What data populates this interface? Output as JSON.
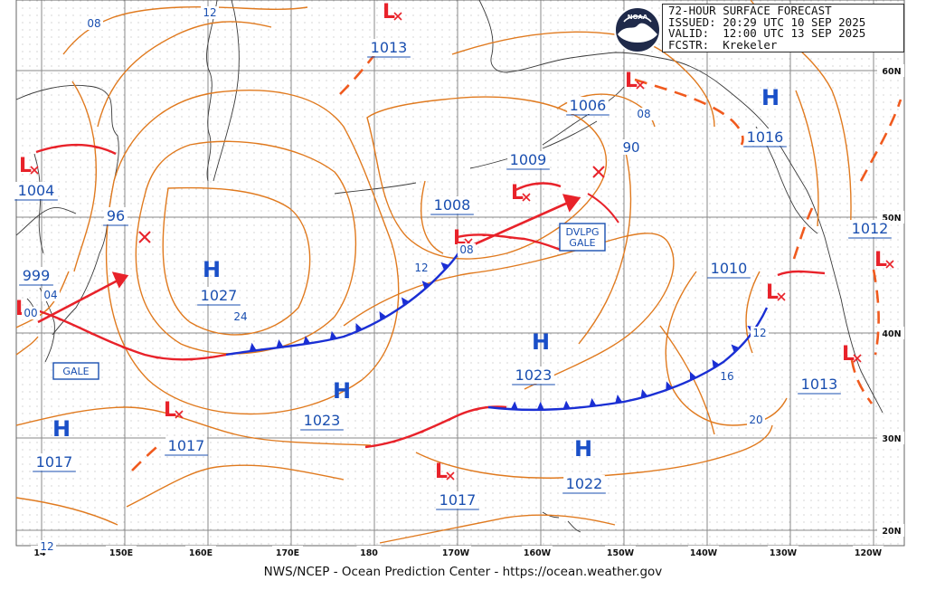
{
  "header": {
    "line1": "72-HOUR SURFACE FORECAST",
    "line2": "ISSUED: 20:29 UTC 10 SEP 2025",
    "line3": "VALID:  12:00 UTC 13 SEP 2025",
    "line4": "FCSTR:  Krekeler"
  },
  "logo": {
    "name": "noaa-logo",
    "text": "NOAA"
  },
  "footer": {
    "credit": "NWS/NCEP - Ocean Prediction Center - https://ocean.weather.gov"
  },
  "longitude_labels": [
    "14",
    "150E",
    "160E",
    "170E",
    "180",
    "170W",
    "160W",
    "150W",
    "140W",
    "130W",
    "120W"
  ],
  "latitude_labels": [
    "60N",
    "50N",
    "40N",
    "30N",
    "20N"
  ],
  "isobar_labels": [
    "08",
    "12",
    "04",
    "00",
    "24",
    "12",
    "08",
    "08",
    "90",
    "12",
    "16",
    "20",
    "12"
  ],
  "high_centers": [
    {
      "symbol": "H",
      "pressure": "1027"
    },
    {
      "symbol": "H",
      "pressure": "1023"
    },
    {
      "symbol": "H",
      "pressure": "1023"
    },
    {
      "symbol": "H",
      "pressure": "1022"
    },
    {
      "symbol": "H",
      "pressure": "1017"
    },
    {
      "symbol": "H",
      "pressure": "1016"
    }
  ],
  "low_centers": [
    {
      "symbol": "L",
      "pressure": "1004"
    },
    {
      "symbol": "L",
      "pressure": "1013"
    },
    {
      "symbol": "L",
      "pressure": "1006"
    },
    {
      "symbol": "L",
      "pressure": "1009"
    },
    {
      "symbol": "L",
      "pressure": "1008"
    },
    {
      "symbol": "L",
      "pressure": "1010"
    },
    {
      "symbol": "L",
      "pressure": "1013"
    },
    {
      "symbol": "L",
      "pressure": "1017"
    },
    {
      "symbol": "L",
      "pressure": "1017"
    },
    {
      "symbol": "L",
      "pressure": "1012"
    },
    {
      "symbol": "L",
      "pressure": "999"
    }
  ],
  "pressure_labels_extra": [
    "96"
  ],
  "warnings": [
    "DVLPG\nGALE",
    "GALE"
  ],
  "colors": {
    "isobar": "#e07a1f",
    "warm_front": "#e8222a",
    "cold_front": "#1a2fd4",
    "trough": "#f05a1e",
    "high": "#1a4fc8",
    "low": "#e8222a",
    "grid": "#8a8a8a",
    "land": "#3a3a3a",
    "label_text": "#1a4fb0"
  }
}
